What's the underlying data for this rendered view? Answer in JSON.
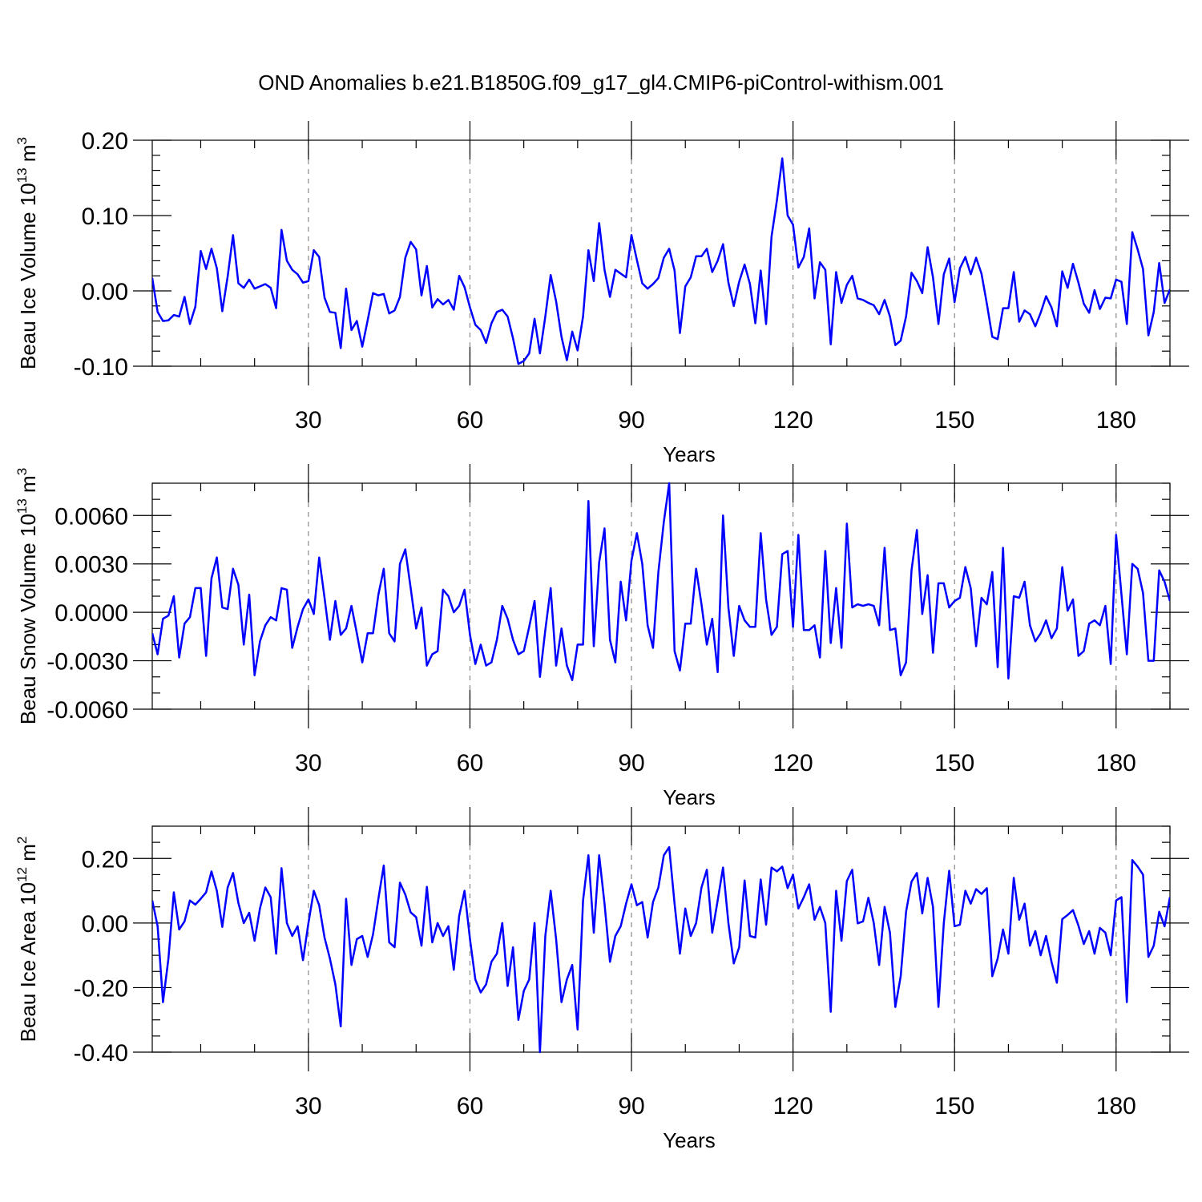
{
  "figure_title": "OND Anomalies b.e21.B1850G.f09_g17_gl4.CMIP6-piControl-withism.001",
  "chart_data": [
    {
      "type": "line",
      "id": "volume",
      "ylabel_main": "Beau Ice Volume 10",
      "ylabel_exp": "13",
      "ylabel_unit": " m",
      "ylabel_unit_exp": "3",
      "xlabel": "Years",
      "xlim": [
        1,
        190
      ],
      "ylim": [
        -0.1,
        0.2
      ],
      "x_ticks": [
        30,
        60,
        90,
        120,
        150,
        180
      ],
      "y_ticks": [
        -0.1,
        0.0,
        0.1,
        0.2
      ],
      "y_tick_labels": [
        "-0.10",
        "0.00",
        "0.10",
        "0.20"
      ],
      "y_minor_step": 0.02,
      "x_minor_step": 10,
      "gridlines_x": true,
      "color": "#0000ff",
      "values": [
        0.017,
        -0.028,
        -0.04,
        -0.039,
        -0.032,
        -0.034,
        -0.008,
        -0.044,
        -0.021,
        0.053,
        0.029,
        0.056,
        0.03,
        -0.027,
        0.019,
        0.074,
        0.01,
        0.004,
        0.015,
        0.003,
        0.006,
        0.009,
        0.004,
        -0.023,
        0.081,
        0.04,
        0.028,
        0.022,
        0.011,
        0.013,
        0.054,
        0.045,
        -0.009,
        -0.028,
        -0.029,
        -0.076,
        0.003,
        -0.052,
        -0.04,
        -0.074,
        -0.039,
        -0.003,
        -0.006,
        -0.004,
        -0.03,
        -0.026,
        -0.008,
        0.044,
        0.065,
        0.055,
        -0.006,
        0.033,
        -0.022,
        -0.011,
        -0.018,
        -0.012,
        -0.025,
        0.02,
        0.005,
        -0.022,
        -0.045,
        -0.052,
        -0.069,
        -0.043,
        -0.028,
        -0.025,
        -0.034,
        -0.063,
        -0.097,
        -0.093,
        -0.083,
        -0.037,
        -0.083,
        -0.034,
        0.021,
        -0.014,
        -0.061,
        -0.092,
        -0.054,
        -0.079,
        -0.034,
        0.054,
        0.013,
        0.09,
        0.028,
        -0.008,
        0.028,
        0.023,
        0.018,
        0.074,
        0.041,
        0.01,
        0.003,
        0.009,
        0.017,
        0.044,
        0.056,
        0.027,
        -0.056,
        0.006,
        0.018,
        0.046,
        0.046,
        0.056,
        0.025,
        0.04,
        0.062,
        0.011,
        -0.02,
        0.012,
        0.035,
        0.009,
        -0.043,
        0.027,
        -0.044,
        0.072,
        0.12,
        0.176,
        0.1,
        0.088,
        0.031,
        0.045,
        0.083,
        -0.01,
        0.038,
        0.028,
        -0.071,
        0.025,
        -0.016,
        0.008,
        0.02,
        -0.01,
        -0.012,
        -0.016,
        -0.019,
        -0.031,
        -0.012,
        -0.034,
        -0.072,
        -0.066,
        -0.034,
        0.024,
        0.013,
        -0.003,
        0.058,
        0.018,
        -0.044,
        0.022,
        0.043,
        -0.015,
        0.03,
        0.045,
        0.022,
        0.044,
        0.023,
        -0.017,
        -0.061,
        -0.064,
        -0.023,
        -0.023,
        0.025,
        -0.041,
        -0.026,
        -0.031,
        -0.047,
        -0.029,
        -0.007,
        -0.022,
        -0.047,
        0.026,
        0.004,
        0.036,
        0.011,
        -0.017,
        -0.029,
        0.001,
        -0.024,
        -0.009,
        -0.01,
        0.015,
        0.012,
        -0.044,
        0.078,
        0.055,
        0.029,
        -0.059,
        -0.028,
        0.037,
        -0.016,
        0.002
      ]
    },
    {
      "type": "line",
      "id": "snow",
      "ylabel_main": "Beau Snow Volume 10",
      "ylabel_exp": "13",
      "ylabel_unit": " m",
      "ylabel_unit_exp": "3",
      "xlabel": "Years",
      "xlim": [
        1,
        190
      ],
      "ylim": [
        -0.006,
        0.008
      ],
      "x_ticks": [
        30,
        60,
        90,
        120,
        150,
        180
      ],
      "y_ticks": [
        -0.006,
        -0.003,
        0.0,
        0.003,
        0.006
      ],
      "y_tick_labels": [
        "-0.0060",
        "-0.0030",
        "0.0000",
        "0.0030",
        "0.0060"
      ],
      "y_minor_step": 0.001,
      "x_minor_step": 10,
      "gridlines_x": true,
      "color": "#0000ff",
      "values": [
        -0.0013,
        -0.0026,
        -0.0004,
        -0.0002,
        0.001,
        -0.0028,
        -0.0007,
        -0.0003,
        0.0015,
        0.0015,
        -0.0027,
        0.0021,
        0.0034,
        0.0003,
        0.0002,
        0.0027,
        0.0017,
        -0.002,
        0.0011,
        -0.0039,
        -0.0018,
        -0.0008,
        -0.0003,
        -0.0005,
        0.0015,
        0.0014,
        -0.0022,
        -0.0009,
        0.0002,
        0.0008,
        -0.0001,
        0.0034,
        0.0009,
        -0.0017,
        0.0007,
        -0.0014,
        -0.001,
        0.0004,
        -0.0013,
        -0.0031,
        -0.0013,
        -0.0013,
        0.0011,
        0.0027,
        -0.0013,
        -0.0018,
        0.003,
        0.0039,
        0.0015,
        -0.001,
        0.0003,
        -0.0033,
        -0.0026,
        -0.0024,
        0.0014,
        0.001,
        0.0,
        0.0004,
        0.0014,
        -0.0014,
        -0.0032,
        -0.002,
        -0.0033,
        -0.0031,
        -0.0017,
        0.0004,
        -0.0004,
        -0.0017,
        -0.0026,
        -0.0024,
        -0.0009,
        0.0007,
        -0.004,
        -0.0011,
        0.0015,
        -0.0033,
        -0.001,
        -0.0033,
        -0.0042,
        -0.002,
        -0.002,
        0.0069,
        -0.0021,
        0.0031,
        0.0052,
        -0.0017,
        -0.0031,
        0.0019,
        -0.0005,
        0.0032,
        0.0049,
        0.003,
        -0.0008,
        -0.0022,
        0.0025,
        0.0056,
        0.008,
        -0.0024,
        -0.0036,
        -0.0007,
        -0.0007,
        0.0027,
        0.0005,
        -0.002,
        -0.0004,
        -0.0037,
        0.006,
        0.0003,
        -0.0027,
        0.0004,
        -0.0005,
        -0.0009,
        -0.0009,
        0.0049,
        0.0008,
        -0.0014,
        -0.0009,
        0.0036,
        0.0038,
        -0.0009,
        0.0048,
        -0.0011,
        -0.0011,
        -0.0008,
        -0.0028,
        0.0038,
        -0.0019,
        0.0015,
        -0.0022,
        0.0055,
        0.0003,
        0.0005,
        0.0004,
        0.0005,
        0.0004,
        -0.0008,
        0.004,
        -0.0011,
        -0.001,
        -0.0039,
        -0.0031,
        0.0026,
        0.0051,
        -0.0001,
        0.0023,
        -0.0025,
        0.0018,
        0.0018,
        0.0003,
        0.0007,
        0.0009,
        0.0028,
        0.0015,
        -0.0021,
        0.0009,
        0.0005,
        0.0025,
        -0.0034,
        0.004,
        -0.0041,
        0.001,
        0.0009,
        0.0019,
        -0.0008,
        -0.0018,
        -0.0013,
        -0.0005,
        -0.0016,
        -0.001,
        0.0028,
        0.0001,
        0.0008,
        -0.0027,
        -0.0024,
        -0.0007,
        -0.0005,
        -0.0008,
        0.0004,
        -0.0032,
        0.0048,
        0.0011,
        -0.0026,
        0.003,
        0.0027,
        0.0012,
        -0.003,
        -0.003,
        0.0026,
        0.0019,
        0.0007
      ]
    },
    {
      "type": "line",
      "id": "area",
      "ylabel_main": "Beau Ice Area 10",
      "ylabel_exp": "12",
      "ylabel_unit": " m",
      "ylabel_unit_exp": "2",
      "xlabel": "Years",
      "xlim": [
        1,
        190
      ],
      "ylim": [
        -0.4,
        0.3
      ],
      "x_ticks": [
        30,
        60,
        90,
        120,
        150,
        180
      ],
      "y_ticks": [
        -0.4,
        -0.2,
        0.0,
        0.2
      ],
      "y_tick_labels": [
        "-0.40",
        "-0.20",
        "0.00",
        "0.20"
      ],
      "y_minor_step": 0.05,
      "x_minor_step": 10,
      "gridlines_x": true,
      "color": "#0000ff",
      "values": [
        0.07,
        -0.01,
        -0.245,
        -0.11,
        0.095,
        -0.02,
        0.005,
        0.07,
        0.057,
        0.075,
        0.095,
        0.16,
        0.1,
        -0.012,
        0.11,
        0.155,
        0.062,
        0.0,
        0.032,
        -0.055,
        0.045,
        0.11,
        0.08,
        -0.095,
        0.17,
        0.0,
        -0.04,
        -0.01,
        -0.115,
        0.0,
        0.1,
        0.055,
        -0.045,
        -0.11,
        -0.19,
        -0.32,
        0.075,
        -0.13,
        -0.05,
        -0.04,
        -0.105,
        -0.035,
        0.075,
        0.178,
        -0.06,
        -0.075,
        0.125,
        0.088,
        0.033,
        0.018,
        -0.07,
        0.112,
        -0.06,
        0.0,
        -0.04,
        -0.01,
        -0.145,
        0.022,
        0.1,
        -0.05,
        -0.175,
        -0.215,
        -0.19,
        -0.12,
        -0.095,
        0.0,
        -0.195,
        -0.075,
        -0.3,
        -0.21,
        -0.175,
        0.0,
        -0.4,
        -0.04,
        0.1,
        -0.05,
        -0.245,
        -0.175,
        -0.13,
        -0.33,
        0.07,
        0.21,
        -0.03,
        0.21,
        0.06,
        -0.12,
        -0.04,
        -0.01,
        0.06,
        0.12,
        0.055,
        0.065,
        -0.045,
        0.065,
        0.11,
        0.21,
        0.235,
        0.06,
        -0.095,
        0.045,
        -0.04,
        0.0,
        0.11,
        0.165,
        -0.03,
        0.07,
        0.172,
        0.0,
        -0.125,
        -0.075,
        0.132,
        -0.04,
        -0.045,
        0.135,
        -0.005,
        0.172,
        0.16,
        0.175,
        0.108,
        0.15,
        0.045,
        0.08,
        0.12,
        0.01,
        0.05,
        0.0,
        -0.275,
        0.1,
        -0.055,
        0.13,
        0.165,
        -0.001,
        0.005,
        0.078,
        0.0,
        -0.13,
        0.05,
        -0.03,
        -0.26,
        -0.165,
        0.035,
        0.128,
        0.155,
        0.03,
        0.14,
        0.05,
        -0.26,
        0.0,
        0.162,
        -0.01,
        -0.005,
        0.1,
        0.06,
        0.105,
        0.09,
        0.108,
        -0.165,
        -0.11,
        -0.02,
        -0.095,
        0.14,
        0.01,
        0.06,
        -0.07,
        -0.025,
        -0.1,
        -0.04,
        -0.12,
        -0.185,
        0.012,
        0.025,
        0.04,
        -0.008,
        -0.065,
        -0.025,
        -0.095,
        -0.015,
        -0.03,
        -0.1,
        0.07,
        0.08,
        -0.245,
        0.195,
        0.175,
        0.15,
        -0.105,
        -0.07,
        0.035,
        -0.01,
        0.08
      ]
    }
  ]
}
